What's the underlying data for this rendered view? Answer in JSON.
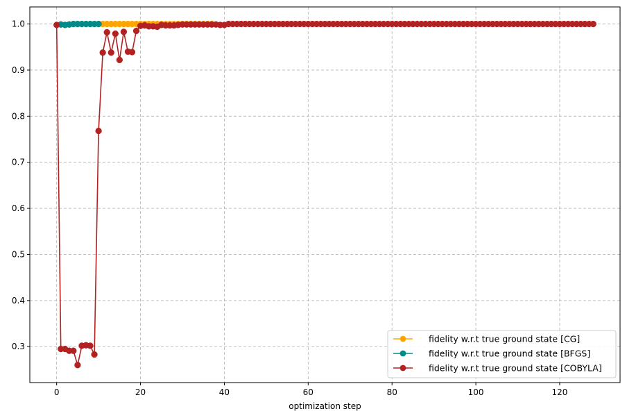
{
  "chart_data": {
    "type": "line",
    "title": "",
    "xlabel": "optimization step",
    "ylabel": "",
    "xlim": [
      -6.4,
      134.4
    ],
    "ylim": [
      0.222,
      1.037
    ],
    "xticks": [
      0,
      20,
      40,
      60,
      80,
      100,
      120
    ],
    "yticks": [
      0.3,
      0.4,
      0.5,
      0.6,
      0.7,
      0.8,
      0.9,
      1.0
    ],
    "xtick_labels": [
      "0",
      "20",
      "40",
      "60",
      "80",
      "100",
      "120"
    ],
    "ytick_labels": [
      "0.3",
      "0.4",
      "0.5",
      "0.6",
      "0.7",
      "0.8",
      "0.9",
      "1.0"
    ],
    "grid": true,
    "legend_position": "lower-right",
    "series": [
      {
        "name": "fidelity w.r.t true ground state [CG]",
        "color": "#FFA500",
        "x": [
          1,
          2,
          3,
          4,
          5,
          6,
          7,
          8,
          9,
          10,
          11,
          12,
          13,
          14,
          15,
          16,
          17,
          18,
          19,
          20,
          21,
          22,
          23,
          24,
          25,
          26,
          27,
          28,
          29,
          30,
          31,
          32,
          33,
          34,
          35,
          36,
          37
        ],
        "y": [
          0.999,
          0.998,
          0.999,
          1.0,
          1.0,
          1.0,
          1.0,
          1.0,
          1.0,
          1.0,
          1.0,
          1.0,
          1.0,
          1.0,
          1.0,
          1.0,
          1.0,
          1.0,
          1.0,
          1.0,
          1.0,
          1.0,
          1.0,
          1.0,
          1.0,
          1.0,
          1.0,
          1.0,
          1.0,
          1.0,
          1.0,
          1.0,
          1.0,
          1.0,
          1.0,
          1.0,
          1.0
        ]
      },
      {
        "name": "fidelity w.r.t true ground state [BFGS]",
        "color": "#008B8B",
        "x": [
          1,
          2,
          3,
          4,
          5,
          6,
          7,
          8,
          9,
          10
        ],
        "y": [
          0.999,
          0.998,
          0.999,
          1.0,
          1.0,
          1.0,
          1.0,
          1.0,
          1.0,
          1.0
        ]
      },
      {
        "name": "fidelity w.r.t true ground state [COBYLA]",
        "color": "#B22222",
        "x": [
          0,
          1,
          2,
          3,
          4,
          5,
          6,
          7,
          8,
          9,
          10,
          11,
          12,
          13,
          14,
          15,
          16,
          17,
          18,
          19,
          20,
          21,
          22,
          23,
          24,
          25,
          26,
          27,
          28,
          29,
          30,
          31,
          32,
          33,
          34,
          35,
          36,
          37,
          38,
          39,
          40,
          41,
          42,
          43,
          44,
          45,
          46,
          47,
          48,
          49,
          50,
          51,
          52,
          53,
          54,
          55,
          56,
          57,
          58,
          59,
          60,
          61,
          62,
          63,
          64,
          65,
          66,
          67,
          68,
          69,
          70,
          71,
          72,
          73,
          74,
          75,
          76,
          77,
          78,
          79,
          80,
          81,
          82,
          83,
          84,
          85,
          86,
          87,
          88,
          89,
          90,
          91,
          92,
          93,
          94,
          95,
          96,
          97,
          98,
          99,
          100,
          101,
          102,
          103,
          104,
          105,
          106,
          107,
          108,
          109,
          110,
          111,
          112,
          113,
          114,
          115,
          116,
          117,
          118,
          119,
          120,
          121,
          122,
          123,
          124,
          125,
          126,
          127,
          128
        ],
        "y": [
          0.998,
          0.295,
          0.295,
          0.291,
          0.291,
          0.26,
          0.302,
          0.303,
          0.302,
          0.283,
          0.768,
          0.938,
          0.982,
          0.938,
          0.979,
          0.922,
          0.983,
          0.94,
          0.939,
          0.985,
          0.996,
          0.997,
          0.995,
          0.995,
          0.994,
          0.998,
          0.997,
          0.997,
          0.997,
          0.998,
          0.999,
          0.999,
          0.999,
          0.999,
          0.999,
          0.999,
          0.999,
          0.999,
          0.999,
          0.998,
          0.998,
          1.0,
          1.0,
          1.0,
          1.0,
          1.0,
          1.0,
          1.0,
          1.0,
          1.0,
          1.0,
          1.0,
          1.0,
          1.0,
          1.0,
          1.0,
          1.0,
          1.0,
          1.0,
          1.0,
          1.0,
          1.0,
          1.0,
          1.0,
          1.0,
          1.0,
          1.0,
          1.0,
          1.0,
          1.0,
          1.0,
          1.0,
          1.0,
          1.0,
          1.0,
          1.0,
          1.0,
          1.0,
          1.0,
          1.0,
          1.0,
          1.0,
          1.0,
          1.0,
          1.0,
          1.0,
          1.0,
          1.0,
          1.0,
          1.0,
          1.0,
          1.0,
          1.0,
          1.0,
          1.0,
          1.0,
          1.0,
          1.0,
          1.0,
          1.0,
          1.0,
          1.0,
          1.0,
          1.0,
          1.0,
          1.0,
          1.0,
          1.0,
          1.0,
          1.0,
          1.0,
          1.0,
          1.0,
          1.0,
          1.0,
          1.0,
          1.0,
          1.0,
          1.0,
          1.0,
          1.0,
          1.0,
          1.0,
          1.0,
          1.0,
          1.0,
          1.0,
          1.0,
          1.0
        ]
      }
    ]
  }
}
